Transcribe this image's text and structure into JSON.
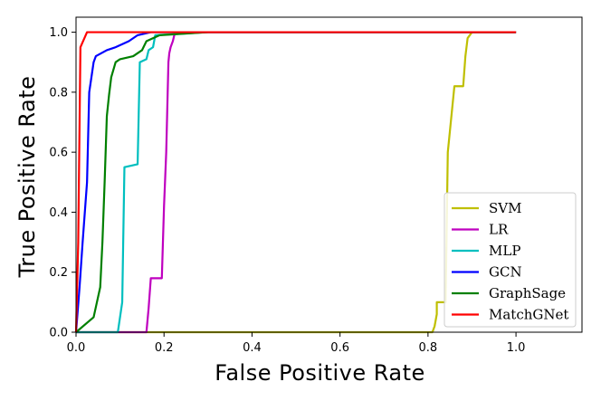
{
  "chart_data": {
    "type": "line",
    "title": "",
    "xlabel": "False Positive Rate",
    "ylabel": "True Positive Rate",
    "xlim": [
      0.0,
      1.15
    ],
    "ylim": [
      0.0,
      1.05
    ],
    "xticks": [
      "0.0",
      "0.2",
      "0.4",
      "0.6",
      "0.8",
      "1.0"
    ],
    "yticks": [
      "0.0",
      "0.2",
      "0.4",
      "0.6",
      "0.8",
      "1.0"
    ],
    "grid": false,
    "legend_position": "lower-right",
    "series": [
      {
        "name": "SVM",
        "color": "#bfbf00",
        "points": [
          [
            0.0,
            0.0
          ],
          [
            0.81,
            0.0
          ],
          [
            0.815,
            0.02
          ],
          [
            0.82,
            0.06
          ],
          [
            0.82,
            0.1
          ],
          [
            0.84,
            0.1
          ],
          [
            0.845,
            0.6
          ],
          [
            0.86,
            0.82
          ],
          [
            0.88,
            0.82
          ],
          [
            0.885,
            0.92
          ],
          [
            0.89,
            0.98
          ],
          [
            0.9,
            1.0
          ],
          [
            1.0,
            1.0
          ]
        ]
      },
      {
        "name": "LR",
        "color": "#bf00bf",
        "points": [
          [
            0.0,
            0.0
          ],
          [
            0.16,
            0.0
          ],
          [
            0.165,
            0.08
          ],
          [
            0.17,
            0.18
          ],
          [
            0.195,
            0.18
          ],
          [
            0.2,
            0.42
          ],
          [
            0.205,
            0.6
          ],
          [
            0.21,
            0.9
          ],
          [
            0.212,
            0.93
          ],
          [
            0.215,
            0.95
          ],
          [
            0.22,
            0.97
          ],
          [
            0.225,
            1.0
          ],
          [
            1.0,
            1.0
          ]
        ]
      },
      {
        "name": "MLP",
        "color": "#00bfbf",
        "points": [
          [
            0.0,
            0.0
          ],
          [
            0.095,
            0.0
          ],
          [
            0.1,
            0.05
          ],
          [
            0.105,
            0.1
          ],
          [
            0.11,
            0.55
          ],
          [
            0.14,
            0.56
          ],
          [
            0.145,
            0.9
          ],
          [
            0.16,
            0.91
          ],
          [
            0.165,
            0.94
          ],
          [
            0.175,
            0.95
          ],
          [
            0.18,
            0.99
          ],
          [
            0.3,
            1.0
          ],
          [
            1.0,
            1.0
          ]
        ]
      },
      {
        "name": "GCN",
        "color": "#0000ff",
        "points": [
          [
            0.0,
            0.0
          ],
          [
            0.008,
            0.15
          ],
          [
            0.015,
            0.3
          ],
          [
            0.025,
            0.5
          ],
          [
            0.03,
            0.8
          ],
          [
            0.035,
            0.85
          ],
          [
            0.04,
            0.9
          ],
          [
            0.045,
            0.92
          ],
          [
            0.07,
            0.94
          ],
          [
            0.09,
            0.95
          ],
          [
            0.12,
            0.97
          ],
          [
            0.14,
            0.99
          ],
          [
            0.17,
            1.0
          ],
          [
            1.0,
            1.0
          ]
        ]
      },
      {
        "name": "GraphSage",
        "color": "#008000",
        "points": [
          [
            0.0,
            0.0
          ],
          [
            0.04,
            0.05
          ],
          [
            0.055,
            0.15
          ],
          [
            0.06,
            0.3
          ],
          [
            0.065,
            0.5
          ],
          [
            0.07,
            0.72
          ],
          [
            0.075,
            0.79
          ],
          [
            0.08,
            0.85
          ],
          [
            0.09,
            0.9
          ],
          [
            0.1,
            0.91
          ],
          [
            0.13,
            0.92
          ],
          [
            0.15,
            0.94
          ],
          [
            0.16,
            0.97
          ],
          [
            0.19,
            0.99
          ],
          [
            0.3,
            1.0
          ],
          [
            1.0,
            1.0
          ]
        ]
      },
      {
        "name": "MatchGNet",
        "color": "#ff0000",
        "points": [
          [
            0.0,
            0.0
          ],
          [
            0.005,
            0.3
          ],
          [
            0.01,
            0.95
          ],
          [
            0.025,
            1.0
          ],
          [
            1.0,
            1.0
          ]
        ]
      }
    ]
  }
}
